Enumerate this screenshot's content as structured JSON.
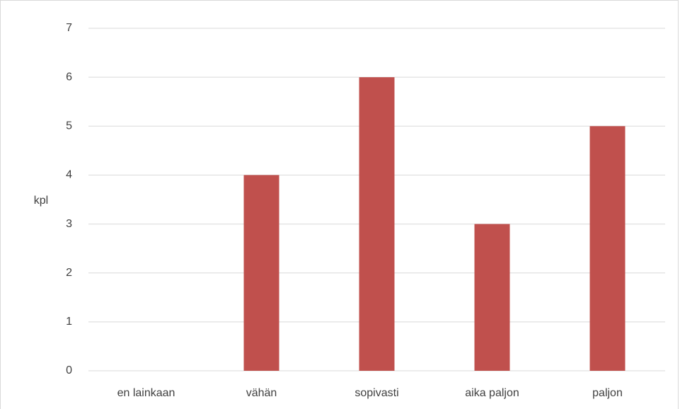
{
  "chart_data": {
    "type": "bar",
    "y_label": "kpl",
    "categories": [
      "en lainkaan",
      "vähän",
      "sopivasti",
      "aika paljon",
      "paljon"
    ],
    "values": [
      0,
      4,
      6,
      3,
      5
    ],
    "color": "#c0504d",
    "ylim": [
      0,
      7
    ],
    "yticks": [
      0,
      1,
      2,
      3,
      4,
      5,
      6,
      7
    ],
    "grid": true
  }
}
